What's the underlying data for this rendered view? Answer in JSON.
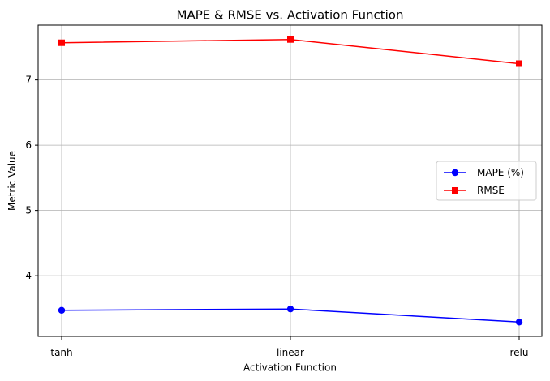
{
  "chart_data": {
    "type": "line",
    "title": "MAPE & RMSE vs. Activation Function",
    "xlabel": "Activation Function",
    "ylabel": "Metric Value",
    "categories": [
      "tanh",
      "linear",
      "relu"
    ],
    "series": [
      {
        "name": "MAPE (%)",
        "values": [
          3.47,
          3.49,
          3.29
        ],
        "color": "#0000ff",
        "marker": "circle"
      },
      {
        "name": "RMSE",
        "values": [
          7.57,
          7.62,
          7.25
        ],
        "color": "#ff0000",
        "marker": "square"
      }
    ],
    "ylim": [
      3.07,
      7.84
    ],
    "yticks": [
      4,
      5,
      6,
      7
    ],
    "grid": true,
    "legend_position": "center-right"
  }
}
